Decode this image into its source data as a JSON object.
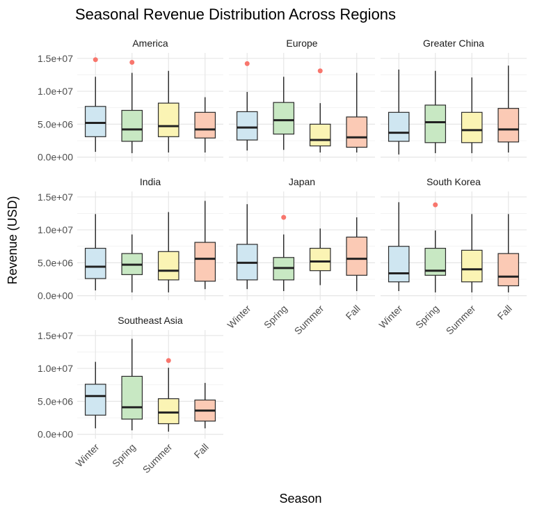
{
  "chart_data": {
    "type": "boxplot",
    "title": "Seasonal Revenue Distribution Across Regions",
    "xlabel": "Season",
    "ylabel": "Revenue (USD)",
    "categories": [
      "Winter",
      "Spring",
      "Summer",
      "Fall"
    ],
    "ylim": [
      0,
      15000000
    ],
    "y_ticks": [
      0,
      5000000,
      10000000,
      15000000
    ],
    "y_tick_labels": [
      "0.0e+00",
      "5.0e+06",
      "1.0e+07",
      "1.5e+07"
    ],
    "grid": true,
    "legend": "none",
    "season_colors": {
      "Winter": "#cfe6f1",
      "Spring": "#c8e8c3",
      "Summer": "#fbf4b4",
      "Fall": "#fbcab5"
    },
    "outlier_color": "#f8766d",
    "panels": [
      {
        "region": "America",
        "boxes": [
          {
            "season": "Winter",
            "whisker_low": 800000,
            "q1": 3100000,
            "median": 5200000,
            "q3": 7700000,
            "whisker_high": 12200000,
            "outliers": [
              14800000
            ]
          },
          {
            "season": "Spring",
            "whisker_low": 600000,
            "q1": 2400000,
            "median": 4200000,
            "q3": 7100000,
            "whisker_high": 12800000,
            "outliers": [
              14400000
            ]
          },
          {
            "season": "Summer",
            "whisker_low": 700000,
            "q1": 3100000,
            "median": 4700000,
            "q3": 8200000,
            "whisker_high": 13100000,
            "outliers": []
          },
          {
            "season": "Fall",
            "whisker_low": 700000,
            "q1": 2900000,
            "median": 4200000,
            "q3": 6800000,
            "whisker_high": 9100000,
            "outliers": []
          }
        ]
      },
      {
        "region": "Europe",
        "boxes": [
          {
            "season": "Winter",
            "whisker_low": 1000000,
            "q1": 2600000,
            "median": 4500000,
            "q3": 6900000,
            "whisker_high": 9900000,
            "outliers": [
              14200000
            ]
          },
          {
            "season": "Spring",
            "whisker_low": 1100000,
            "q1": 3500000,
            "median": 5600000,
            "q3": 8300000,
            "whisker_high": 12200000,
            "outliers": []
          },
          {
            "season": "Summer",
            "whisker_low": 700000,
            "q1": 1700000,
            "median": 2600000,
            "q3": 5000000,
            "whisker_high": 8200000,
            "outliers": [
              13100000
            ]
          },
          {
            "season": "Fall",
            "whisker_low": 700000,
            "q1": 1500000,
            "median": 3000000,
            "q3": 6100000,
            "whisker_high": 12800000,
            "outliers": []
          }
        ]
      },
      {
        "region": "Greater China",
        "boxes": [
          {
            "season": "Winter",
            "whisker_low": 400000,
            "q1": 2400000,
            "median": 3700000,
            "q3": 6800000,
            "whisker_high": 13300000,
            "outliers": []
          },
          {
            "season": "Spring",
            "whisker_low": 600000,
            "q1": 2200000,
            "median": 5300000,
            "q3": 7900000,
            "whisker_high": 13100000,
            "outliers": []
          },
          {
            "season": "Summer",
            "whisker_low": 600000,
            "q1": 2200000,
            "median": 4100000,
            "q3": 6800000,
            "whisker_high": 12100000,
            "outliers": []
          },
          {
            "season": "Fall",
            "whisker_low": 700000,
            "q1": 2300000,
            "median": 4200000,
            "q3": 7400000,
            "whisker_high": 13900000,
            "outliers": []
          }
        ]
      },
      {
        "region": "India",
        "boxes": [
          {
            "season": "Winter",
            "whisker_low": 800000,
            "q1": 2600000,
            "median": 4400000,
            "q3": 7200000,
            "whisker_high": 12400000,
            "outliers": []
          },
          {
            "season": "Spring",
            "whisker_low": 500000,
            "q1": 3200000,
            "median": 4700000,
            "q3": 6400000,
            "whisker_high": 9300000,
            "outliers": []
          },
          {
            "season": "Summer",
            "whisker_low": 500000,
            "q1": 2400000,
            "median": 3800000,
            "q3": 6700000,
            "whisker_high": 12700000,
            "outliers": []
          },
          {
            "season": "Fall",
            "whisker_low": 1000000,
            "q1": 2200000,
            "median": 5600000,
            "q3": 8100000,
            "whisker_high": 14400000,
            "outliers": []
          }
        ]
      },
      {
        "region": "Japan",
        "boxes": [
          {
            "season": "Winter",
            "whisker_low": 1000000,
            "q1": 2400000,
            "median": 5000000,
            "q3": 7800000,
            "whisker_high": 13900000,
            "outliers": []
          },
          {
            "season": "Spring",
            "whisker_low": 700000,
            "q1": 2400000,
            "median": 4200000,
            "q3": 5800000,
            "whisker_high": 9300000,
            "outliers": [
              11900000
            ]
          },
          {
            "season": "Summer",
            "whisker_low": 1600000,
            "q1": 3800000,
            "median": 5200000,
            "q3": 7200000,
            "whisker_high": 10200000,
            "outliers": []
          },
          {
            "season": "Fall",
            "whisker_low": 700000,
            "q1": 3100000,
            "median": 5600000,
            "q3": 8900000,
            "whisker_high": 11900000,
            "outliers": []
          }
        ]
      },
      {
        "region": "South Korea",
        "boxes": [
          {
            "season": "Winter",
            "whisker_low": 700000,
            "q1": 2100000,
            "median": 3400000,
            "q3": 7500000,
            "whisker_high": 14200000,
            "outliers": []
          },
          {
            "season": "Spring",
            "whisker_low": 500000,
            "q1": 3100000,
            "median": 3800000,
            "q3": 7200000,
            "whisker_high": 9900000,
            "outliers": [
              13800000
            ]
          },
          {
            "season": "Summer",
            "whisker_low": 500000,
            "q1": 2100000,
            "median": 4000000,
            "q3": 6900000,
            "whisker_high": 12400000,
            "outliers": []
          },
          {
            "season": "Fall",
            "whisker_low": 500000,
            "q1": 1500000,
            "median": 2900000,
            "q3": 6400000,
            "whisker_high": 12400000,
            "outliers": []
          }
        ]
      },
      {
        "region": "Southeast Asia",
        "boxes": [
          {
            "season": "Winter",
            "whisker_low": 900000,
            "q1": 2900000,
            "median": 5800000,
            "q3": 7600000,
            "whisker_high": 11000000,
            "outliers": []
          },
          {
            "season": "Spring",
            "whisker_low": 600000,
            "q1": 2300000,
            "median": 4100000,
            "q3": 8800000,
            "whisker_high": 14500000,
            "outliers": []
          },
          {
            "season": "Summer",
            "whisker_low": 400000,
            "q1": 1600000,
            "median": 3300000,
            "q3": 5400000,
            "whisker_high": 10100000,
            "outliers": [
              11200000
            ]
          },
          {
            "season": "Fall",
            "whisker_low": 900000,
            "q1": 2000000,
            "median": 3600000,
            "q3": 5200000,
            "whisker_high": 7800000,
            "outliers": []
          }
        ]
      }
    ]
  }
}
